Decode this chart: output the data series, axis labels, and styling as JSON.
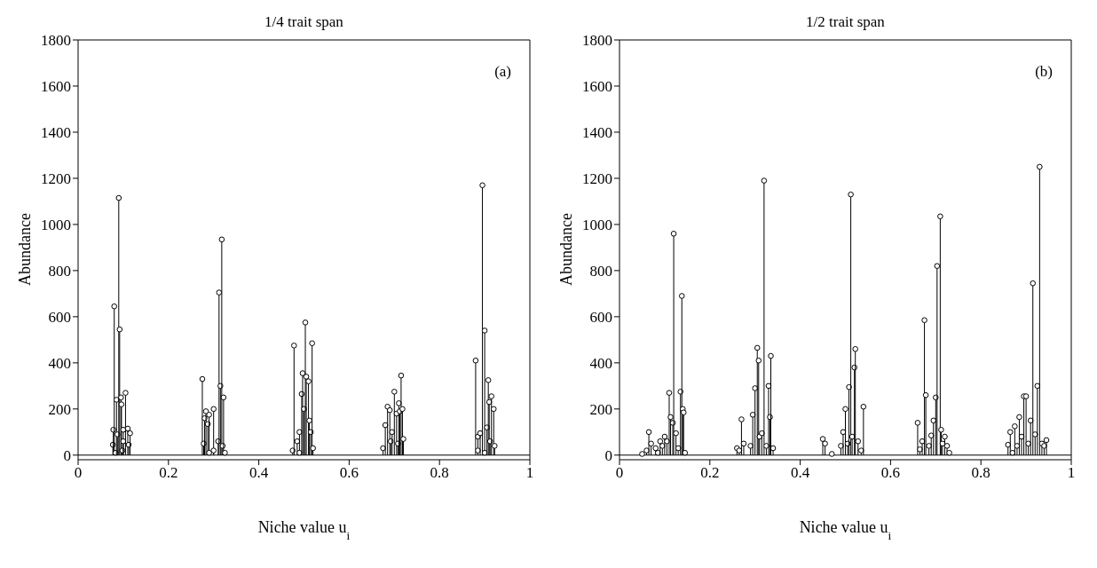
{
  "chart_data": [
    {
      "type": "lollipop",
      "title": "1/4 trait span",
      "xlabel": "Niche value  u$_{i}$",
      "ylabel": "Abundance",
      "color": "#000000",
      "marker": "circle",
      "xlim": [
        0,
        1
      ],
      "xticks": [
        0,
        0.2,
        0.4,
        0.6,
        0.8,
        1
      ],
      "ylim": [
        -20,
        1800
      ],
      "yticks": [
        0,
        200,
        400,
        600,
        800,
        1000,
        1200,
        1400,
        1600,
        1800
      ],
      "annotations": [
        "(a)"
      ],
      "ref_lines": [
        {
          "axis": "y",
          "value": 0,
          "label": null
        }
      ],
      "x": [
        0.077,
        0.078,
        0.08,
        0.083,
        0.085,
        0.087,
        0.09,
        0.092,
        0.095,
        0.096,
        0.098,
        0.1,
        0.1,
        0.105,
        0.11,
        0.112,
        0.115,
        0.275,
        0.278,
        0.28,
        0.283,
        0.287,
        0.29,
        0.29,
        0.3,
        0.3,
        0.31,
        0.312,
        0.315,
        0.318,
        0.32,
        0.322,
        0.325,
        0.475,
        0.478,
        0.485,
        0.49,
        0.49,
        0.495,
        0.497,
        0.5,
        0.503,
        0.505,
        0.51,
        0.512,
        0.515,
        0.518,
        0.52,
        0.675,
        0.68,
        0.685,
        0.69,
        0.692,
        0.695,
        0.7,
        0.705,
        0.708,
        0.71,
        0.712,
        0.715,
        0.718,
        0.72,
        0.88,
        0.885,
        0.885,
        0.89,
        0.895,
        0.9,
        0.9,
        0.905,
        0.908,
        0.91,
        0.912,
        0.915,
        0.92,
        0.922
      ],
      "values": [
        45,
        110,
        645,
        10,
        240,
        90,
        1115,
        545,
        250,
        220,
        20,
        110,
        60,
        270,
        115,
        45,
        95,
        330,
        50,
        160,
        190,
        135,
        175,
        10,
        200,
        20,
        60,
        705,
        300,
        935,
        40,
        250,
        10,
        20,
        475,
        60,
        100,
        10,
        265,
        355,
        200,
        575,
        340,
        320,
        150,
        100,
        485,
        30,
        30,
        130,
        210,
        195,
        60,
        100,
        275,
        180,
        50,
        225,
        190,
        345,
        200,
        70,
        410,
        80,
        20,
        95,
        1170,
        540,
        10,
        120,
        325,
        230,
        60,
        255,
        200,
        40
      ]
    },
    {
      "type": "lollipop",
      "title": "1/2 trait span",
      "xlabel": "Niche value  u$_{i}$",
      "ylabel": "Abundance",
      "color": "#000000",
      "marker": "circle",
      "xlim": [
        0,
        1
      ],
      "xticks": [
        0,
        0.2,
        0.4,
        0.6,
        0.8,
        1
      ],
      "ylim": [
        -20,
        1800
      ],
      "yticks": [
        0,
        200,
        400,
        600,
        800,
        1000,
        1200,
        1400,
        1600,
        1800
      ],
      "annotations": [
        "(b)"
      ],
      "ref_lines": [
        {
          "axis": "y",
          "value": 0,
          "label": null
        }
      ],
      "x": [
        0.05,
        0.06,
        0.065,
        0.07,
        0.08,
        0.085,
        0.09,
        0.095,
        0.1,
        0.105,
        0.11,
        0.113,
        0.118,
        0.12,
        0.125,
        0.13,
        0.135,
        0.138,
        0.14,
        0.142,
        0.145,
        0.26,
        0.265,
        0.27,
        0.275,
        0.29,
        0.295,
        0.3,
        0.305,
        0.308,
        0.31,
        0.315,
        0.32,
        0.325,
        0.33,
        0.333,
        0.335,
        0.34,
        0.45,
        0.455,
        0.47,
        0.49,
        0.495,
        0.5,
        0.505,
        0.508,
        0.512,
        0.515,
        0.52,
        0.522,
        0.528,
        0.535,
        0.54,
        0.66,
        0.665,
        0.67,
        0.675,
        0.678,
        0.685,
        0.69,
        0.695,
        0.7,
        0.703,
        0.71,
        0.712,
        0.715,
        0.72,
        0.725,
        0.73,
        0.86,
        0.865,
        0.87,
        0.875,
        0.88,
        0.885,
        0.89,
        0.895,
        0.9,
        0.905,
        0.91,
        0.915,
        0.92,
        0.925,
        0.93,
        0.935,
        0.94,
        0.945
      ],
      "values": [
        5,
        20,
        100,
        50,
        30,
        10,
        60,
        40,
        80,
        60,
        270,
        165,
        140,
        960,
        95,
        30,
        275,
        690,
        200,
        185,
        10,
        30,
        20,
        155,
        50,
        40,
        175,
        290,
        465,
        410,
        80,
        95,
        1190,
        40,
        300,
        165,
        430,
        30,
        70,
        50,
        5,
        40,
        100,
        200,
        50,
        295,
        1130,
        80,
        380,
        460,
        60,
        20,
        210,
        140,
        25,
        60,
        585,
        260,
        40,
        85,
        150,
        250,
        820,
        1035,
        110,
        50,
        80,
        40,
        10,
        45,
        100,
        10,
        125,
        40,
        165,
        80,
        255,
        255,
        50,
        150,
        745,
        90,
        300,
        1250,
        50,
        40,
        65
      ]
    }
  ]
}
